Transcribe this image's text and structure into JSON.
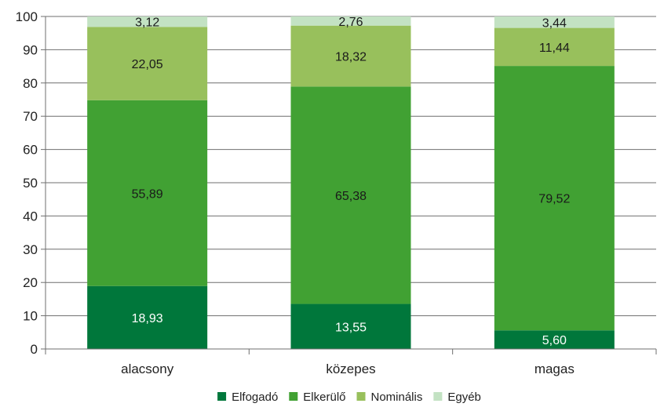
{
  "chart_data": {
    "type": "bar",
    "stacked": true,
    "categories": [
      "alacsony",
      "közepes",
      "magas"
    ],
    "series": [
      {
        "name": "Elfogadó",
        "color": "#00773b",
        "label_color": "#ffffff",
        "values": [
          18.93,
          13.55,
          5.6
        ],
        "labels": [
          "18,93",
          "13,55",
          "5,60"
        ]
      },
      {
        "name": "Elkerülő",
        "color": "#41a133",
        "label_color": "#1a1a1a",
        "values": [
          55.89,
          65.38,
          79.52
        ],
        "labels": [
          "55,89",
          "65,38",
          "79,52"
        ]
      },
      {
        "name": "Nominális",
        "color": "#98c05c",
        "label_color": "#1a1a1a",
        "values": [
          22.05,
          18.32,
          11.44
        ],
        "labels": [
          "22,05",
          "18,32",
          "11,44"
        ]
      },
      {
        "name": "Egyéb",
        "color": "#c3e2c3",
        "label_color": "#1a1a1a",
        "values": [
          3.12,
          2.76,
          3.44
        ],
        "labels": [
          "3,12",
          "2,76",
          "3,44"
        ]
      }
    ],
    "ylim": [
      0,
      100
    ],
    "yticks": [
      "0",
      "10",
      "20",
      "30",
      "40",
      "50",
      "60",
      "70",
      "80",
      "90",
      "100"
    ],
    "grid": true,
    "legend_position": "bottom",
    "title": "",
    "xlabel": "",
    "ylabel": ""
  }
}
